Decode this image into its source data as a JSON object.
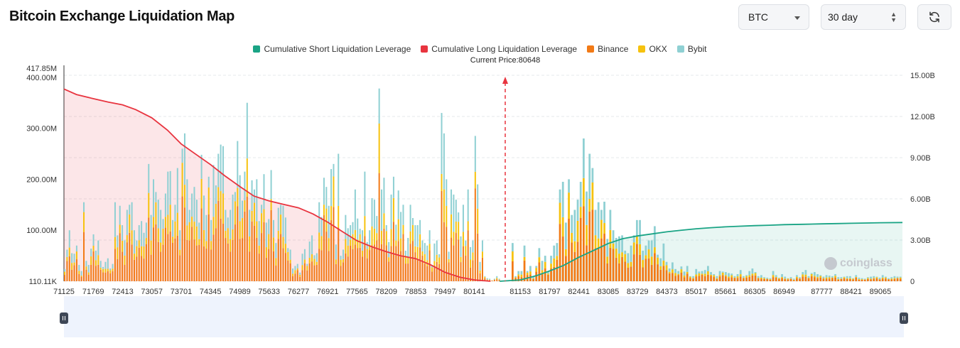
{
  "header": {
    "title": "Bitcoin Exchange Liquidation Map",
    "coin_select": "BTC",
    "range_select": "30 day",
    "refresh_icon": "refresh-icon"
  },
  "legend": [
    {
      "label": "Cumulative Short Liquidation Leverage",
      "color": "#1aa485"
    },
    {
      "label": "Cumulative Long Liquidation Leverage",
      "color": "#e8343f"
    },
    {
      "label": "Binance",
      "color": "#f27a16"
    },
    {
      "label": "OKX",
      "color": "#f6c20e"
    },
    {
      "label": "Bybit",
      "color": "#8fd0d3"
    }
  ],
  "current_price_label": "Current Price:80648",
  "watermark": "coinglass",
  "chart_data": {
    "type": "bar",
    "current_price": 80648,
    "x_tick_labels": [
      "71125",
      "71769",
      "72413",
      "73057",
      "73701",
      "74345",
      "74989",
      "75633",
      "76277",
      "76921",
      "77565",
      "78209",
      "78853",
      "79497",
      "80141",
      "81153",
      "81797",
      "82441",
      "83085",
      "83729",
      "84373",
      "85017",
      "85661",
      "86305",
      "86949",
      "87777",
      "88421",
      "89065"
    ],
    "y_left_ticks": [
      "417.85M",
      "400.00M",
      "300.00M",
      "200.00M",
      "100.00M",
      "110.11K"
    ],
    "y_right_ticks": [
      "15.00B",
      "12.00B",
      "9.00B",
      "6.00B",
      "3.00B",
      "0"
    ],
    "y_left_range_millions": [
      0,
      417.85
    ],
    "y_right_range_billions": [
      0,
      15
    ],
    "long_bar_totals_millions": [
      24,
      62,
      100,
      55,
      54,
      70,
      32,
      20,
      155,
      40,
      32,
      64,
      92,
      60,
      80,
      40,
      28,
      38,
      45,
      25,
      34,
      155,
      90,
      148,
      110,
      80,
      140,
      150,
      155,
      100,
      80,
      110,
      118,
      95,
      115,
      230,
      130,
      200,
      175,
      160,
      140,
      122,
      172,
      215,
      216,
      120,
      150,
      222,
      100,
      260,
      290,
      200,
      140,
      172,
      185,
      160,
      115,
      248,
      168,
      130,
      205,
      120,
      228,
      188,
      250,
      268,
      265,
      140,
      125,
      140,
      170,
      175,
      275,
      208,
      158,
      215,
      350,
      140,
      198,
      180,
      200,
      118,
      150,
      210,
      115,
      122,
      218,
      120,
      75,
      144,
      150,
      148,
      125,
      65,
      62,
      25,
      30,
      34,
      17,
      54,
      63,
      34,
      78,
      90,
      51,
      55,
      155,
      126,
      203,
      185,
      148,
      220,
      230,
      72,
      250,
      50,
      62,
      130,
      104,
      110,
      116,
      180,
      123,
      103,
      100,
      215,
      77,
      100,
      163,
      160,
      128,
      378,
      180,
      203,
      110,
      77,
      170,
      205,
      111,
      178,
      136,
      150,
      60,
      85,
      150,
      124,
      110,
      110,
      120,
      80,
      75,
      70,
      100,
      32,
      74,
      80,
      53,
      330,
      290,
      200,
      58,
      180,
      170,
      160,
      135,
      88,
      150,
      80,
      180,
      67,
      80,
      285,
      190,
      38,
      80,
      10,
      6,
      5,
      2,
      5,
      10,
      5
    ],
    "short_bar_totals_millions": [
      75,
      10,
      20,
      20,
      70,
      20,
      30,
      10,
      30,
      65,
      40,
      50,
      20,
      50,
      70,
      75,
      180,
      195,
      115,
      200,
      130,
      140,
      160,
      195,
      280,
      176,
      250,
      222,
      140,
      155,
      140,
      156,
      83,
      140,
      100,
      85,
      88,
      90,
      60,
      55,
      70,
      90,
      120,
      120,
      60,
      70,
      80,
      80,
      108,
      52,
      45,
      74,
      38,
      25,
      37,
      24,
      20,
      29,
      19,
      30,
      10,
      10,
      24,
      19,
      20,
      22,
      30,
      18,
      14,
      10,
      20,
      19,
      18,
      16,
      15,
      10,
      14,
      22,
      10,
      12,
      20,
      25,
      18,
      10,
      12,
      8,
      7,
      6,
      20,
      12,
      7,
      14,
      9,
      6,
      8,
      5,
      12,
      8,
      18,
      22,
      10,
      16,
      18,
      14,
      12,
      9,
      12,
      11,
      10,
      14,
      8,
      8,
      9,
      10,
      10,
      6,
      12,
      7,
      6,
      5,
      8,
      9,
      10,
      9,
      7,
      12,
      9,
      6,
      8,
      10,
      9,
      9
    ],
    "cumulative_long_billions": {
      "x": [
        71125,
        71400,
        71769,
        72100,
        72413,
        72700,
        73057,
        73400,
        73701,
        74000,
        74345,
        74650,
        74989,
        75300,
        75633,
        75950,
        76277,
        76600,
        76921,
        77250,
        77565,
        77900,
        78209,
        78530,
        78853,
        79180,
        79497,
        79820,
        80141,
        80500
      ],
      "y": [
        14.0,
        13.6,
        13.3,
        13.05,
        12.85,
        12.5,
        11.9,
        11.0,
        10.0,
        9.3,
        8.5,
        7.7,
        6.9,
        6.2,
        5.85,
        5.6,
        5.35,
        4.9,
        4.3,
        3.6,
        2.95,
        2.5,
        2.15,
        1.85,
        1.65,
        1.2,
        0.65,
        0.3,
        0.1,
        0.0
      ]
    },
    "cumulative_short_billions": {
      "x": [
        80700,
        81153,
        81500,
        81797,
        82100,
        82441,
        82800,
        83085,
        83400,
        83729,
        84050,
        84373,
        84700,
        85017,
        85340,
        85661,
        85980,
        86305,
        86630,
        86949,
        87370,
        87777,
        88100,
        88421,
        88750,
        89065,
        89550
      ],
      "y": [
        0.0,
        0.1,
        0.4,
        0.75,
        1.15,
        1.75,
        2.3,
        2.75,
        3.1,
        3.3,
        3.45,
        3.6,
        3.72,
        3.82,
        3.9,
        3.96,
        4.01,
        4.05,
        4.08,
        4.12,
        4.15,
        4.18,
        4.2,
        4.22,
        4.24,
        4.26,
        4.28
      ]
    }
  }
}
